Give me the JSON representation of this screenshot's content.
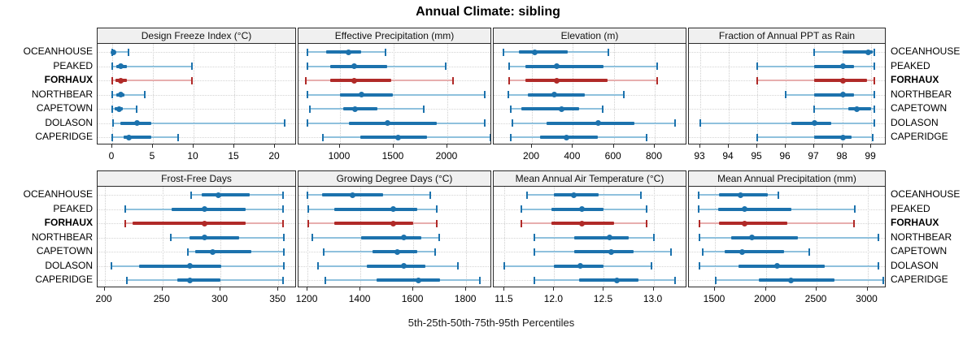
{
  "title": "Annual Climate: sibling",
  "caption": "5th-25th-50th-75th-95th Percentiles",
  "colors": {
    "series_dark": "#1c72ad",
    "series_light": "#8fc1dd",
    "highlight_dark": "#b02a28",
    "highlight_light": "#e7aeae",
    "grid": "#cfcfcf",
    "strip_bg": "#f0f0f0",
    "border": "#2b2b2b"
  },
  "chart_data": {
    "type": "dot-interval",
    "trellis": {
      "rows": 2,
      "cols": 4
    },
    "percentiles": [
      5,
      25,
      50,
      75,
      95
    ],
    "sites": [
      "OCEANHOUSE",
      "PEAKED",
      "FORHAUX",
      "NORTHBEAR",
      "CAPETOWN",
      "DOLASON",
      "CAPERIDGE"
    ],
    "highlight_site": "FORHAUX",
    "panels": [
      {
        "title": "Design Freeze Index (°C)",
        "xlim": [
          -1.8,
          22.7
        ],
        "tick_values": [
          0,
          5,
          10,
          15,
          20
        ],
        "tick_labels": [
          "0",
          "5",
          "10",
          "15",
          "20"
        ],
        "values": {
          "OCEANHOUSE": [
            0,
            0,
            0.1,
            0.4,
            2.0
          ],
          "PEAKED": [
            0,
            0.5,
            1.0,
            1.8,
            9.8
          ],
          "FORHAUX": [
            0,
            0.4,
            1.0,
            1.8,
            9.8
          ],
          "NORTHBEAR": [
            0,
            0.5,
            1.0,
            1.5,
            4.0
          ],
          "CAPETOWN": [
            0,
            0.3,
            0.8,
            1.3,
            3.0
          ],
          "DOLASON": [
            0.1,
            1.0,
            3.0,
            4.8,
            21.2
          ],
          "CAPERIDGE": [
            0,
            1.4,
            2.0,
            4.8,
            8.1
          ]
        }
      },
      {
        "title": "Effective Precipitation (mm)",
        "xlim": [
          614,
          2417
        ],
        "tick_values": [
          1000,
          1500,
          2000
        ],
        "tick_labels": [
          "1000",
          "1500",
          "2000"
        ],
        "values": {
          "OCEANHOUSE": [
            700,
            870,
            1080,
            1200,
            1425
          ],
          "PEAKED": [
            700,
            910,
            1135,
            1440,
            1985
          ],
          "FORHAUX": [
            680,
            910,
            1135,
            1480,
            2050
          ],
          "NORTHBEAR": [
            700,
            1000,
            1200,
            1490,
            2350
          ],
          "CAPETOWN": [
            720,
            1030,
            1140,
            1350,
            1780
          ],
          "DOLASON": [
            700,
            1080,
            1440,
            1900,
            2350
          ],
          "CAPERIDGE": [
            840,
            1190,
            1540,
            1810,
            2400
          ]
        }
      },
      {
        "title": "Elevation (m)",
        "xlim": [
          13,
          959
        ],
        "tick_values": [
          200,
          400,
          600,
          800
        ],
        "tick_labels": [
          "200",
          "400",
          "600",
          "800"
        ],
        "values": {
          "OCEANHOUSE": [
            60,
            135,
            215,
            375,
            575
          ],
          "PEAKED": [
            90,
            170,
            320,
            550,
            810
          ],
          "FORHAUX": [
            90,
            170,
            320,
            570,
            810
          ],
          "NORTHBEAR": [
            85,
            180,
            310,
            460,
            650
          ],
          "CAPETOWN": [
            95,
            150,
            345,
            430,
            545
          ],
          "DOLASON": [
            105,
            270,
            525,
            700,
            900
          ],
          "CAPERIDGE": [
            95,
            240,
            370,
            520,
            760
          ]
        }
      },
      {
        "title": "Fraction of Annual PPT as Rain",
        "xlim": [
          92.6,
          99.54
        ],
        "tick_values": [
          93,
          94,
          95,
          96,
          97,
          98,
          99
        ],
        "tick_labels": [
          "93",
          "94",
          "95",
          "96",
          "97",
          "98",
          "99"
        ],
        "values": {
          "OCEANHOUSE": [
            97,
            98,
            98.9,
            99.05,
            99.1
          ],
          "PEAKED": [
            95,
            97,
            98,
            98.4,
            99.1
          ],
          "FORHAUX": [
            95,
            97,
            98,
            98.85,
            99.1
          ],
          "NORTHBEAR": [
            96,
            97,
            98,
            98.4,
            99.1
          ],
          "CAPETOWN": [
            97,
            98.2,
            98.5,
            99.0,
            99.1
          ],
          "DOLASON": [
            93,
            96.2,
            97,
            97.6,
            99.1
          ],
          "CAPERIDGE": [
            95,
            97,
            98,
            98.3,
            99.05
          ]
        }
      },
      {
        "title": "Frost-Free Days",
        "xlim": [
          194,
          366
        ],
        "tick_values": [
          200,
          250,
          300,
          350
        ],
        "tick_labels": [
          "200",
          "250",
          "300",
          "350"
        ],
        "values": {
          "OCEANHOUSE": [
            275,
            284,
            298,
            325,
            354
          ],
          "PEAKED": [
            218,
            258,
            286,
            322,
            354
          ],
          "FORHAUX": [
            218,
            224,
            286,
            322,
            354
          ],
          "NORTHBEAR": [
            257,
            273,
            286,
            316,
            355
          ],
          "CAPETOWN": [
            272,
            278,
            293,
            327,
            355
          ],
          "DOLASON": [
            206,
            230,
            274,
            301,
            355
          ],
          "CAPERIDGE": [
            219,
            263,
            274,
            300,
            354
          ]
        }
      },
      {
        "title": "Growing Degree Days (°C)",
        "xlim": [
          1166,
          1898
        ],
        "tick_values": [
          1200,
          1400,
          1600,
          1800
        ],
        "tick_labels": [
          "1200",
          "1400",
          "1600",
          "1800"
        ],
        "values": {
          "OCEANHOUSE": [
            1200,
            1255,
            1370,
            1485,
            1665
          ],
          "PEAKED": [
            1203,
            1302,
            1524,
            1615,
            1689
          ],
          "FORHAUX": [
            1202,
            1302,
            1524,
            1600,
            1689
          ],
          "NORTHBEAR": [
            1219,
            1404,
            1563,
            1630,
            1697
          ],
          "CAPETOWN": [
            1261,
            1445,
            1541,
            1615,
            1684
          ],
          "DOLASON": [
            1240,
            1425,
            1563,
            1645,
            1769
          ],
          "CAPERIDGE": [
            1269,
            1461,
            1620,
            1700,
            1853
          ]
        }
      },
      {
        "title": "Mean Annual Air Temperature (°C)",
        "xlim": [
          11.39,
          13.34
        ],
        "tick_values": [
          11.5,
          12.0,
          12.5,
          13.0
        ],
        "tick_labels": [
          "11.5",
          "12.0",
          "12.5",
          "13.0"
        ],
        "values": {
          "OCEANHOUSE": [
            11.73,
            12.0,
            12.2,
            12.45,
            12.87
          ],
          "PEAKED": [
            11.67,
            11.97,
            12.28,
            12.5,
            12.93
          ],
          "FORHAUX": [
            11.67,
            11.97,
            12.28,
            12.6,
            12.93
          ],
          "NORTHBEAR": [
            11.8,
            12.2,
            12.56,
            12.75,
            13.0
          ],
          "CAPETOWN": [
            11.8,
            12.2,
            12.57,
            12.8,
            13.18
          ],
          "DOLASON": [
            11.5,
            12.0,
            12.26,
            12.5,
            12.98
          ],
          "CAPERIDGE": [
            11.8,
            12.25,
            12.63,
            12.85,
            13.22
          ]
        }
      },
      {
        "title": "Mean Annual Precipitation (mm)",
        "xlim": [
          1244,
          3188
        ],
        "tick_values": [
          1500,
          2000,
          2500,
          3000
        ],
        "tick_labels": [
          "1500",
          "2000",
          "2500",
          "3000"
        ],
        "values": {
          "OCEANHOUSE": [
            1340,
            1540,
            1750,
            2020,
            2120
          ],
          "PEAKED": [
            1340,
            1530,
            1795,
            2250,
            2875
          ],
          "FORHAUX": [
            1347,
            1540,
            1795,
            2210,
            2870
          ],
          "NORTHBEAR": [
            1345,
            1660,
            1865,
            2315,
            3110
          ],
          "CAPETOWN": [
            1380,
            1595,
            1770,
            2180,
            2430
          ],
          "DOLASON": [
            1345,
            1730,
            2115,
            2580,
            3110
          ],
          "CAPERIDGE": [
            1510,
            1930,
            2250,
            2675,
            3155
          ]
        }
      }
    ]
  }
}
